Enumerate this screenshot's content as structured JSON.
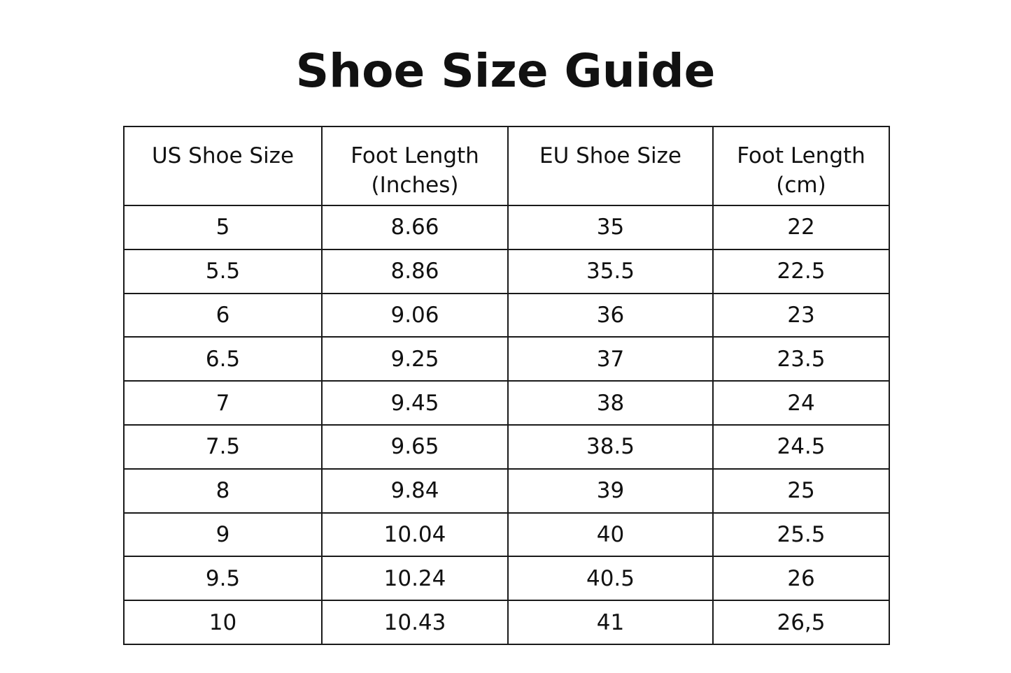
{
  "title": "Shoe Size Guide",
  "table": {
    "headers": [
      "US Shoe Size",
      "Foot Length\n(Inches)",
      "EU Shoe Size",
      "Foot Length\n(cm)"
    ],
    "rows": [
      [
        "5",
        "8.66",
        "35",
        "22"
      ],
      [
        "5.5",
        "8.86",
        "35.5",
        "22.5"
      ],
      [
        "6",
        "9.06",
        "36",
        "23"
      ],
      [
        "6.5",
        "9.25",
        "37",
        "23.5"
      ],
      [
        "7",
        "9.45",
        "38",
        "24"
      ],
      [
        "7.5",
        "9.65",
        "38.5",
        "24.5"
      ],
      [
        "8",
        "9.84",
        "39",
        "25"
      ],
      [
        "9",
        "10.04",
        "40",
        "25.5"
      ],
      [
        "9.5",
        "10.24",
        "40.5",
        "26"
      ],
      [
        "10",
        "10.43",
        "41",
        "26,5"
      ]
    ]
  }
}
